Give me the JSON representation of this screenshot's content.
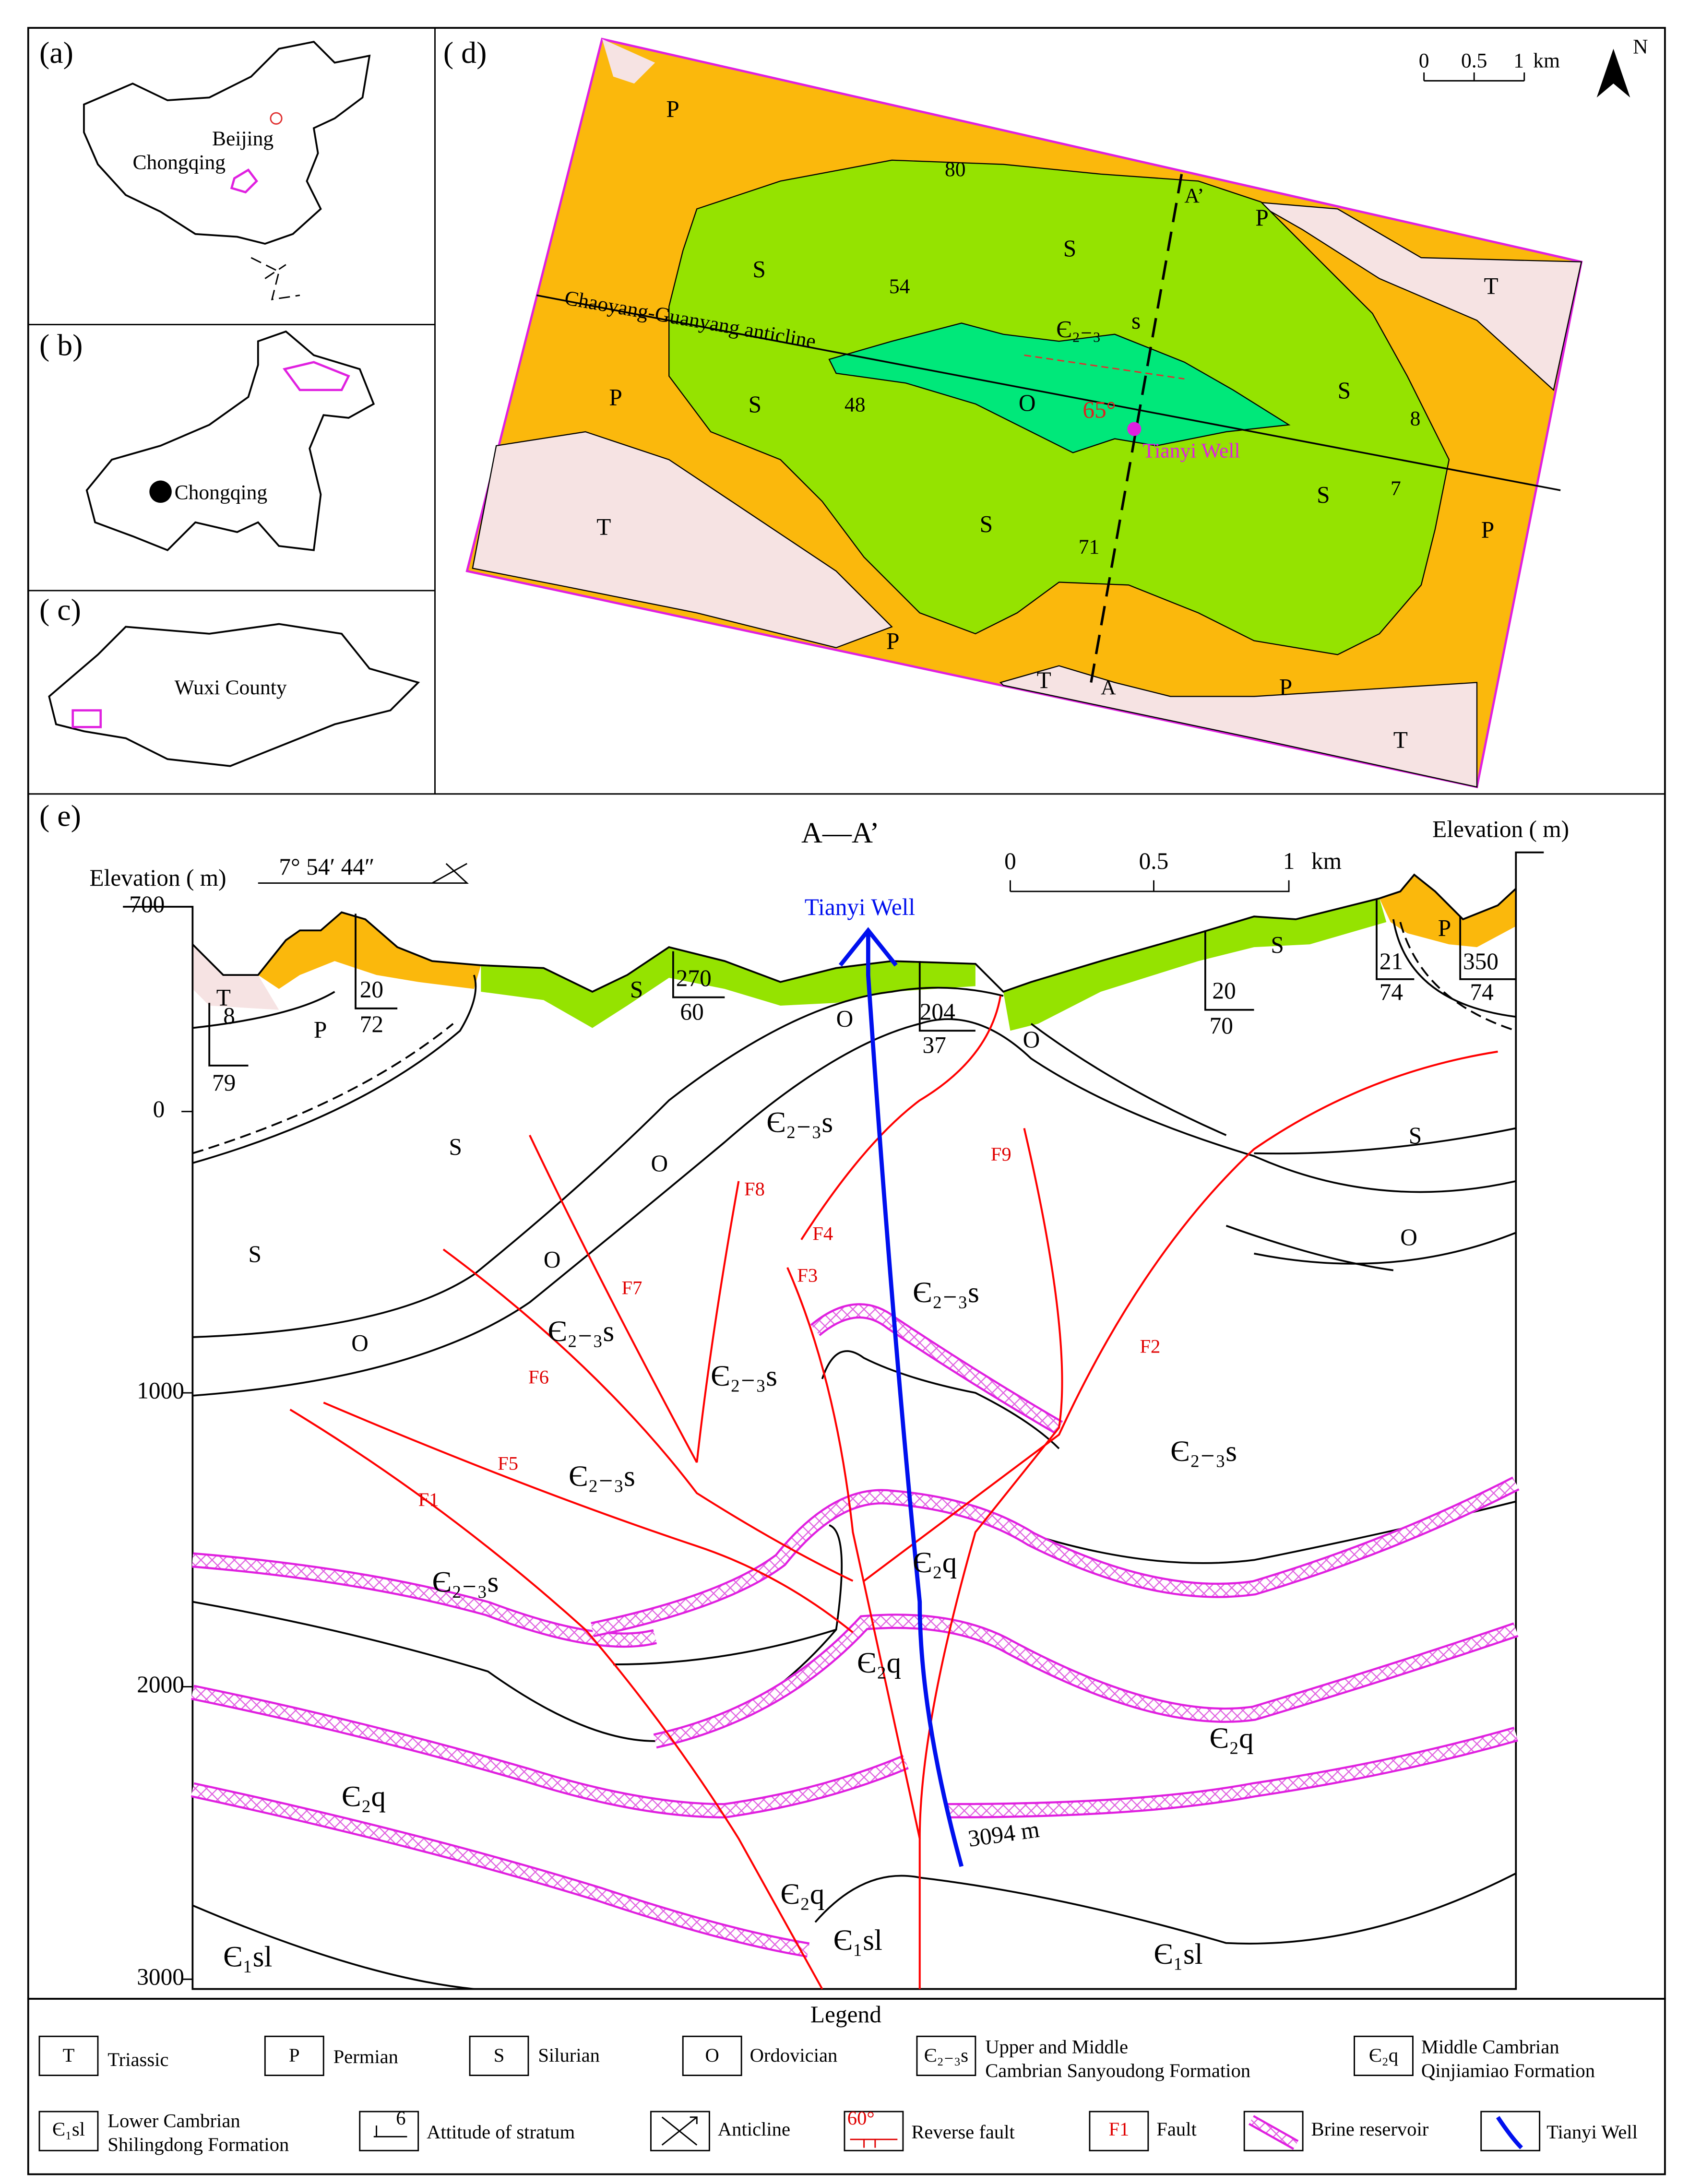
{
  "panel_a": {
    "label": "(a)",
    "beijing": "Beijing",
    "chongqing": "Chongqing"
  },
  "panel_b": {
    "label": "( b)",
    "chongqing": "Chongqing"
  },
  "panel_c": {
    "label": "( c)",
    "county": "Wuxi County"
  },
  "panel_d": {
    "label": "( d)",
    "scale": {
      "ticks": [
        "0",
        "0.5",
        "1"
      ],
      "unit": "km"
    },
    "north": "N",
    "anticline": "Chaoyang-Guanyang anticline",
    "section_ends": [
      "A’",
      "A"
    ],
    "well": "Tianyi Well",
    "fault_dip": "65°",
    "attitudes": [
      "80",
      "54",
      "48",
      "71",
      "8",
      "7"
    ],
    "units": [
      "P",
      "S",
      "S",
      "P",
      "T",
      "P",
      "S",
      "Є₂₋₃",
      "s",
      "O",
      "S",
      "T",
      "S",
      "S",
      "P",
      "P",
      "T",
      "P",
      "T"
    ]
  },
  "panel_e": {
    "label": "( e)",
    "section": "A—A’",
    "elevation_left": "Elevation ( m)",
    "elevation_right": "Elevation ( m)",
    "dip_angle": "7°  54′  44″",
    "scale": {
      "ticks": [
        "0",
        "0.5",
        "1"
      ],
      "unit": "km"
    },
    "well": "Tianyi Well",
    "depth": "3094  m",
    "elevation_ticks": [
      "700",
      "0",
      "1000",
      "2000",
      "3000"
    ],
    "attitudes": [
      [
        "8",
        "79"
      ],
      [
        "20",
        "72"
      ],
      [
        "270",
        "60"
      ],
      [
        "204",
        "37"
      ],
      [
        "20",
        "70"
      ],
      [
        "21",
        "74"
      ],
      [
        "350",
        "74"
      ]
    ],
    "units": [
      "T",
      "P",
      "S",
      "O",
      "O",
      "S",
      "P",
      "S",
      "S",
      "O",
      "O",
      "O",
      "S",
      "O",
      "Є₂₋₃s",
      "Є₂₋₃s",
      "Є₂₋₃s",
      "Є₂₋₃s",
      "Є₂₋₃s",
      "Є₂₋₃s",
      "Є₂₋₃s",
      "Є₂q",
      "Є₂q",
      "Є₂q",
      "Є₂q",
      "Є₂q",
      "Є₁sl",
      "Є₁sl",
      "Є₁sl"
    ],
    "faults": [
      "F1",
      "F2",
      "F3",
      "F4",
      "F5",
      "F6",
      "F7",
      "F8",
      "F9"
    ]
  },
  "legend": {
    "title": "Legend",
    "items": [
      {
        "symbol": "T",
        "lines": [
          "Triassic"
        ]
      },
      {
        "symbol": "P",
        "lines": [
          "Permian"
        ]
      },
      {
        "symbol": "S",
        "lines": [
          "Silurian"
        ]
      },
      {
        "symbol": "O",
        "lines": [
          "Ordovician"
        ]
      },
      {
        "symbol": "Є₂₋₃s",
        "lines": [
          "Upper and Middle",
          "Cambrian Sanyoudong Formation"
        ]
      },
      {
        "symbol": "Є₂q",
        "lines": [
          "Middle Cambrian",
          "Qinjiamiao Formation"
        ]
      },
      {
        "symbol": "Є₁sl",
        "lines": [
          "Lower Cambrian",
          "Shilingdong Formation"
        ]
      },
      {
        "symbol": "6",
        "lines": [
          "Attitude of stratum"
        ]
      },
      {
        "lines": [
          "Anticline"
        ]
      },
      {
        "symbol": "60°",
        "lines": [
          "Reverse fault"
        ]
      },
      {
        "symbol": "F1",
        "lines": [
          "Fault"
        ]
      },
      {
        "lines": [
          "Brine reservoir"
        ]
      },
      {
        "lines": [
          "Tianyi Well"
        ]
      }
    ]
  }
}
